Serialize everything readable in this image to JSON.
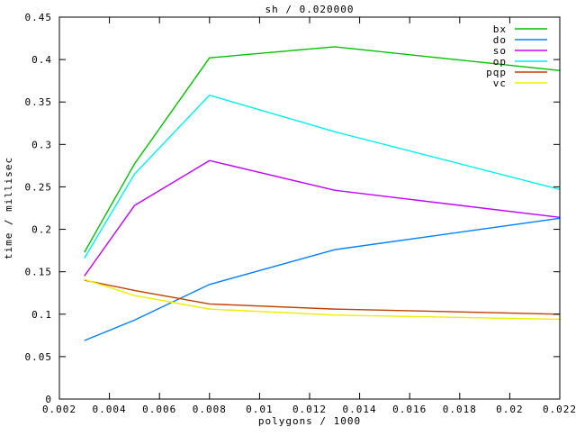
{
  "page": {
    "background": "#ffffff",
    "text_color": "#000000",
    "border_color": "#000000"
  },
  "chart_data": {
    "type": "line",
    "title": "sh / 0.020000",
    "xlabel": "polygons / 1000",
    "ylabel": "time / millisec",
    "xlim": [
      0.002,
      0.022
    ],
    "ylim": [
      0,
      0.45
    ],
    "grid": false,
    "legend_position": "top-right-inside",
    "xticks": [
      0.002,
      0.004,
      0.006,
      0.008,
      0.01,
      0.012,
      0.014,
      0.016,
      0.018,
      0.02,
      0.022
    ],
    "xtick_labels": [
      "0.002",
      "0.004",
      "0.006",
      "0.008",
      "0.01",
      "0.012",
      "0.014",
      "0.016",
      "0.018",
      "0.02",
      "0.022"
    ],
    "yticks": [
      0,
      0.05,
      0.1,
      0.15,
      0.2,
      0.25,
      0.3,
      0.35,
      0.4,
      0.45
    ],
    "ytick_labels": [
      "0",
      "0.05",
      "0.1",
      "0.15",
      "0.2",
      "0.25",
      "0.3",
      "0.35",
      "0.4",
      "0.45"
    ],
    "x": [
      0.003,
      0.005,
      0.008,
      0.013,
      0.022
    ],
    "series": [
      {
        "name": "bx",
        "color": "#00c000",
        "values": [
          0.173,
          0.277,
          0.402,
          0.415,
          0.387
        ]
      },
      {
        "name": "do",
        "color": "#0080ff",
        "values": [
          0.069,
          0.093,
          0.135,
          0.176,
          0.213
        ]
      },
      {
        "name": "so",
        "color": "#c000ff",
        "values": [
          0.145,
          0.228,
          0.281,
          0.246,
          0.214
        ]
      },
      {
        "name": "op",
        "color": "#00eeee",
        "values": [
          0.166,
          0.265,
          0.358,
          0.315,
          0.247
        ]
      },
      {
        "name": "pqp",
        "color": "#c04000",
        "values": [
          0.14,
          0.128,
          0.112,
          0.106,
          0.1
        ]
      },
      {
        "name": "vc",
        "color": "#eeee00",
        "values": [
          0.141,
          0.122,
          0.106,
          0.099,
          0.094
        ]
      }
    ]
  }
}
